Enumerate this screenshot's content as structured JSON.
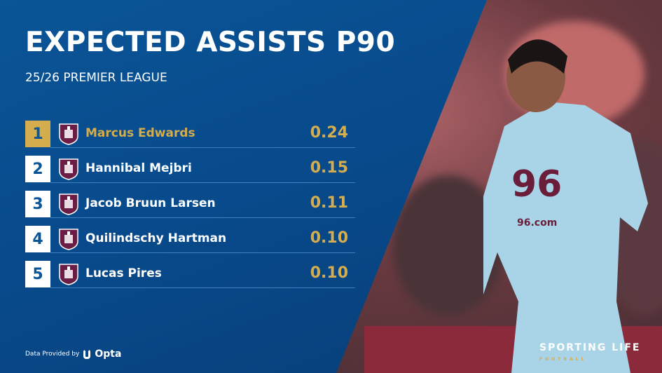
{
  "title": "EXPECTED ASSISTS P90",
  "subtitle": "25/26 PREMIER LEAGUE",
  "accent": "#d4ad4f",
  "background": "#0a5597",
  "rows": [
    {
      "rank": "1",
      "player": "Marcus Edwards",
      "value": "0.24",
      "icon": "burnley-crest-icon"
    },
    {
      "rank": "2",
      "player": "Hannibal Mejbri",
      "value": "0.15",
      "icon": "burnley-crest-icon"
    },
    {
      "rank": "3",
      "player": "Jacob Bruun Larsen",
      "value": "0.11",
      "icon": "burnley-crest-icon"
    },
    {
      "rank": "4",
      "player": "Quilindschy Hartman",
      "value": "0.10",
      "icon": "burnley-crest-icon"
    },
    {
      "rank": "5",
      "player": "Lucas Pires",
      "value": "0.10",
      "icon": "burnley-crest-icon"
    }
  ],
  "footer": {
    "provided_by": "Data Provided by",
    "provider": "Opta"
  },
  "brand": {
    "name": "SPORTING LIFE",
    "section": "FOOTBALL"
  },
  "photo": {
    "shirt_sponsor": "96.com",
    "shirt_number": "96"
  }
}
